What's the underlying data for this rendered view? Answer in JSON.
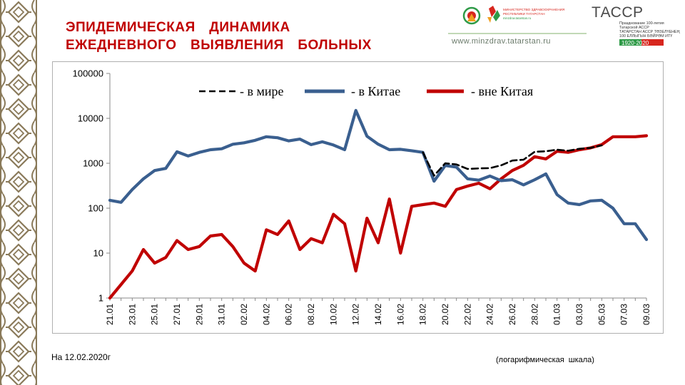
{
  "slide": {
    "title_line1": "ЭПИДЕМИЧЕСКАЯ  ДИНАМИКА",
    "title_line2": "ЕЖЕДНЕВНОГО  ВЫЯВЛЕНИЯ  БОЛЬНЫХ",
    "date_note": "На 12.02.2020г",
    "scale_note": "(логарифмическая  шкала)"
  },
  "logos": {
    "ministry_line1": "МИНИСТЕРСТВО ЗДРАВООХРАНЕНИЯ",
    "ministry_line2": "РЕСПУБЛИКИ ТАТАРСТАН",
    "ministry_site": "minzdrav.tatarstan.ru",
    "site_url": "www.minzdrav.tatarstan.ru",
    "tassr_mark": "ТАССР",
    "tassr_line1": "Празднование 100-летия",
    "tassr_line2": "Татарской АССР",
    "tassr_line3": "ТАТАРСТАН АССР ТӨЗЕЛҮЕНЕҢ",
    "tassr_line4": "100 ЕЛЛЫГЫН БӘЙРӘМ ИТҮ",
    "tassr_years": "1920·2020",
    "colors": {
      "red": "#d7261e",
      "green": "#2e9a47",
      "orange": "#f0a020"
    }
  },
  "chart_data": {
    "type": "line",
    "y_scale": "log",
    "ylim": [
      1,
      100000
    ],
    "y_ticks": [
      "1",
      "10",
      "100",
      "1000",
      "10000",
      "100000"
    ],
    "grid": false,
    "legend_position": "top",
    "x_labels": [
      "21.01",
      "23.01",
      "25.01",
      "27.01",
      "29.01",
      "31.01",
      "02.02",
      "04.02",
      "06.02",
      "08.02",
      "10.02",
      "12.02",
      "14.02",
      "16.02",
      "18.02",
      "20.02",
      "22.02",
      "24.02",
      "26.02",
      "28.02",
      "01.03",
      "03.03",
      "05.03",
      "07.03",
      "09.03"
    ],
    "series": [
      {
        "name": "- в мире",
        "color": "#000000",
        "style": "dashed",
        "start_index": 28,
        "values": [
          1750,
          530,
          1000,
          940,
          750,
          770,
          780,
          900,
          1150,
          1200,
          1800,
          1850,
          2000,
          1900,
          2100,
          2200,
          2500
        ]
      },
      {
        "name": "-  в Китае",
        "color": "#3a5f8f",
        "style": "solid",
        "start_index": 0,
        "values": [
          150,
          135,
          260,
          450,
          690,
          770,
          1800,
          1450,
          1750,
          2000,
          2100,
          2650,
          2850,
          3250,
          3900,
          3700,
          3150,
          3450,
          2600,
          3000,
          2550,
          2000,
          15000,
          4000,
          2650,
          2000,
          2050,
          1900,
          1750,
          400,
          890,
          820,
          450,
          420,
          520,
          410,
          430,
          330,
          430,
          580,
          200,
          130,
          120,
          145,
          150,
          100,
          45,
          45,
          20
        ]
      },
      {
        "name": "- вне Китая",
        "color": "#c00000",
        "style": "solid",
        "start_index": 0,
        "values": [
          1,
          2,
          4,
          12,
          6,
          8,
          19,
          12,
          14,
          24,
          26,
          14,
          6,
          4,
          33,
          26,
          52,
          12,
          21,
          17,
          73,
          45,
          4,
          60,
          17,
          160,
          10,
          110,
          120,
          130,
          110,
          260,
          310,
          360,
          270,
          450,
          690,
          900,
          1400,
          1250,
          1850,
          1750,
          2000,
          2200,
          2600,
          3900,
          3900,
          3900,
          4100
        ]
      }
    ]
  }
}
